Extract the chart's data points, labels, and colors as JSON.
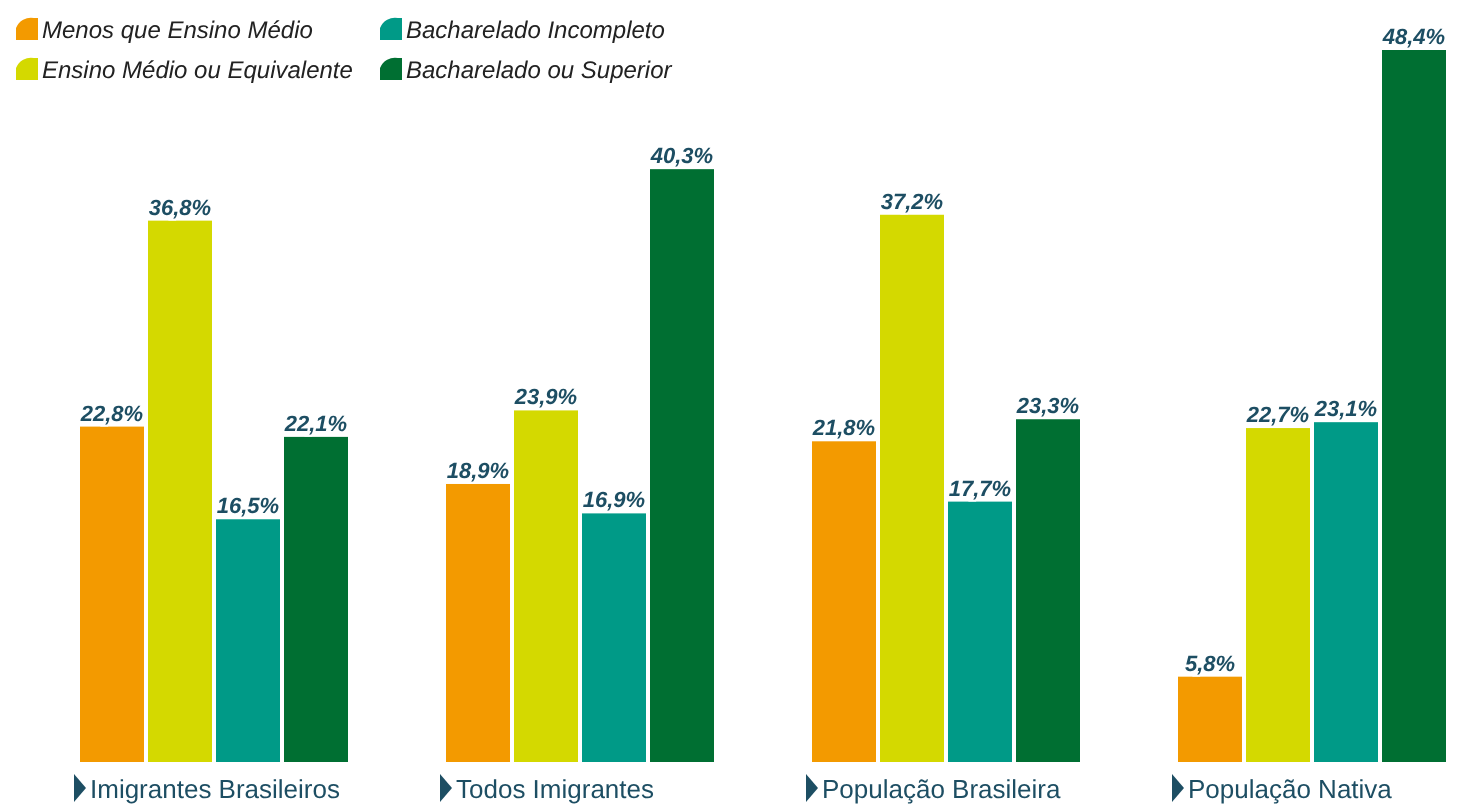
{
  "chart_data": {
    "type": "bar",
    "categories": [
      "Imigrantes Brasileiros",
      "Todos Imigrantes",
      "População Brasileira",
      "População Nativa"
    ],
    "series": [
      {
        "name": "Menos que Ensino Médio",
        "color": "#f39a00",
        "values": [
          22.8,
          18.9,
          21.8,
          5.8
        ],
        "value_labels": [
          "22,8%",
          "18,9%",
          "21,8%",
          "5,8%"
        ]
      },
      {
        "name": "Ensino Médio ou Equivalente",
        "color": "#d4d900",
        "values": [
          36.8,
          23.9,
          37.2,
          22.7
        ],
        "value_labels": [
          "36,8%",
          "23,9%",
          "37,2%",
          "22,7%"
        ]
      },
      {
        "name": "Bacharelado Incompleto",
        "color": "#009a87",
        "values": [
          16.5,
          16.9,
          17.7,
          23.1
        ],
        "value_labels": [
          "16,5%",
          "16,9%",
          "17,7%",
          "23,1%"
        ]
      },
      {
        "name": "Bacharelado ou Superior",
        "color": "#006f32",
        "values": [
          22.1,
          40.3,
          23.3,
          48.4
        ],
        "value_labels": [
          "22,1%",
          "40,3%",
          "23,3%",
          "48,4%"
        ]
      }
    ],
    "legend": "top left"
  }
}
